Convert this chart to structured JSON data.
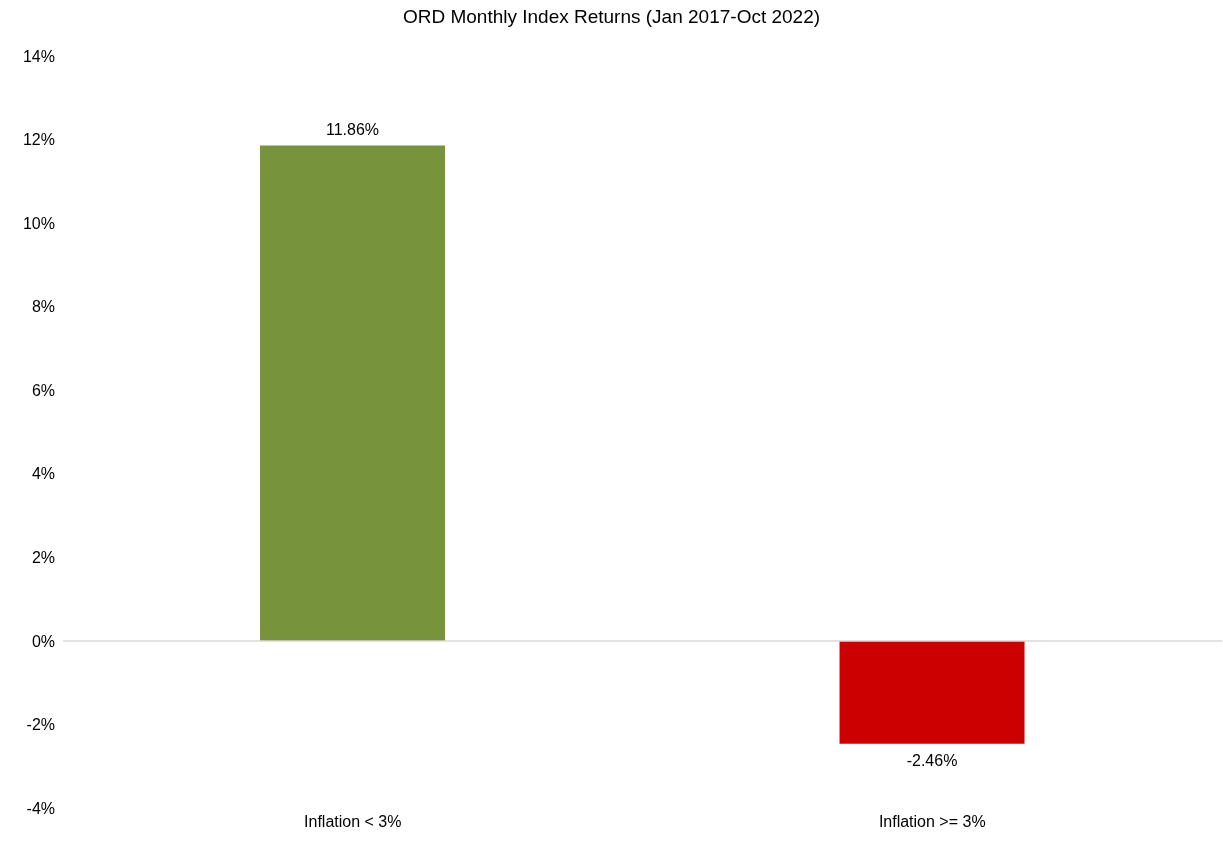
{
  "chart_data": {
    "type": "bar",
    "title": "ORD Monthly Index Returns (Jan 2017-Oct 2022)",
    "categories": [
      "Inflation < 3%",
      "Inflation >= 3%"
    ],
    "values": [
      11.86,
      -2.46
    ],
    "colors": [
      "#77933c",
      "#cc0000"
    ],
    "value_labels": [
      "11.86%",
      "-2.46%"
    ],
    "ylim": [
      -4,
      14
    ],
    "yticks": [
      {
        "value": -4,
        "label": "-4%"
      },
      {
        "value": -2,
        "label": "-2%"
      },
      {
        "value": 0,
        "label": "0%"
      },
      {
        "value": 2,
        "label": "2%"
      },
      {
        "value": 4,
        "label": "4%"
      },
      {
        "value": 6,
        "label": "6%"
      },
      {
        "value": 8,
        "label": "8%"
      },
      {
        "value": 10,
        "label": "10%"
      },
      {
        "value": 12,
        "label": "12%"
      },
      {
        "value": 14,
        "label": "14%"
      }
    ],
    "legend": false
  }
}
